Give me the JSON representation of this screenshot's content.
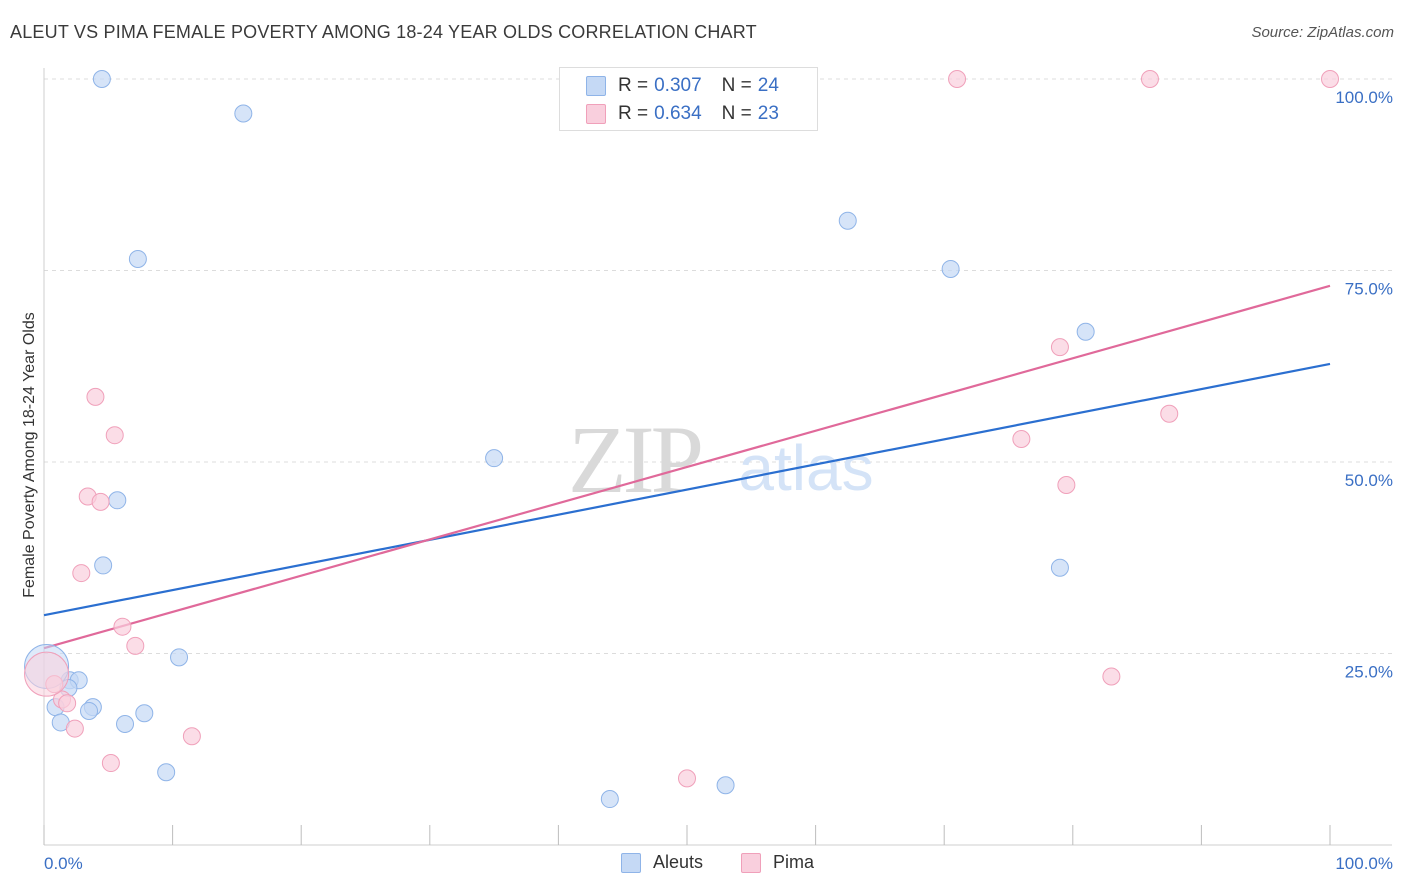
{
  "title": "ALEUT VS PIMA FEMALE POVERTY AMONG 18-24 YEAR OLDS CORRELATION CHART",
  "source": "Source: ZipAtlas.com",
  "watermark": {
    "zip": "ZIP",
    "atlas": "atlas"
  },
  "legend_top": [
    {
      "r_label": "R =",
      "r_value": "0.307",
      "n_label": "N =",
      "n_value": "24"
    },
    {
      "r_label": "R =",
      "r_value": "0.634",
      "n_label": "N =",
      "n_value": "23"
    }
  ],
  "legend_bottom": [
    {
      "label": "Aleuts"
    },
    {
      "label": "Pima"
    }
  ],
  "chart_data": {
    "type": "scatter",
    "title": "ALEUT VS PIMA FEMALE POVERTY AMONG 18-24 YEAR OLDS CORRELATION CHART",
    "xlabel": "",
    "ylabel": "Female Poverty Among 18-24 Year Olds",
    "xlim": [
      0,
      100
    ],
    "ylim": [
      0,
      102
    ],
    "x_ticks": [
      0,
      10,
      20,
      30,
      40,
      50,
      60,
      70,
      80,
      90,
      100
    ],
    "x_tick_labels": [
      {
        "value": 0,
        "label": "0.0%"
      },
      {
        "value": 100,
        "label": "100.0%"
      }
    ],
    "y_ticks": [
      {
        "value": 25,
        "label": "25.0%"
      },
      {
        "value": 50,
        "label": "50.0%"
      },
      {
        "value": 75,
        "label": "75.0%"
      },
      {
        "value": 100,
        "label": "100.0%"
      }
    ],
    "grid": "horizontal dashed",
    "legend_position": "top-center",
    "series": [
      {
        "name": "Aleuts",
        "color": "#8fb4e8",
        "fill": "#c5d9f5",
        "line_color": "#2b6fd0",
        "trend": {
          "x": [
            0,
            100
          ],
          "y": [
            30.0,
            62.8
          ]
        },
        "points": [
          {
            "x": 4.5,
            "y": 100
          },
          {
            "x": 15.5,
            "y": 95.5
          },
          {
            "x": 7.3,
            "y": 76.5
          },
          {
            "x": 35,
            "y": 50.5
          },
          {
            "x": 5.7,
            "y": 45
          },
          {
            "x": 4.6,
            "y": 36.5
          },
          {
            "x": 10.5,
            "y": 24.5
          },
          {
            "x": 2.0,
            "y": 21.5
          },
          {
            "x": 2.7,
            "y": 21.5
          },
          {
            "x": 1.9,
            "y": 20.5
          },
          {
            "x": 0.9,
            "y": 18
          },
          {
            "x": 3.8,
            "y": 18
          },
          {
            "x": 3.5,
            "y": 17.5
          },
          {
            "x": 7.8,
            "y": 17.2
          },
          {
            "x": 1.3,
            "y": 16
          },
          {
            "x": 6.3,
            "y": 15.8
          },
          {
            "x": 9.5,
            "y": 9.5
          },
          {
            "x": 44,
            "y": 6
          },
          {
            "x": 53,
            "y": 7.8
          },
          {
            "x": 62.5,
            "y": 81.5
          },
          {
            "x": 70.5,
            "y": 75.2
          },
          {
            "x": 81,
            "y": 67
          },
          {
            "x": 79,
            "y": 36.2
          },
          {
            "x": 0.2,
            "y": 23.3,
            "large": true
          }
        ]
      },
      {
        "name": "Pima",
        "color": "#f0a0ba",
        "fill": "#f9cfdd",
        "line_color": "#e0699a",
        "trend": {
          "x": [
            0,
            100
          ],
          "y": [
            25.7,
            73.0
          ]
        },
        "points": [
          {
            "x": 71,
            "y": 100
          },
          {
            "x": 86,
            "y": 100
          },
          {
            "x": 100,
            "y": 100
          },
          {
            "x": 4.0,
            "y": 58.5
          },
          {
            "x": 5.5,
            "y": 53.5
          },
          {
            "x": 3.4,
            "y": 45.5
          },
          {
            "x": 4.4,
            "y": 44.8
          },
          {
            "x": 2.9,
            "y": 35.5
          },
          {
            "x": 6.1,
            "y": 28.5
          },
          {
            "x": 7.1,
            "y": 26
          },
          {
            "x": 0.8,
            "y": 21
          },
          {
            "x": 1.4,
            "y": 19
          },
          {
            "x": 1.8,
            "y": 18.5
          },
          {
            "x": 2.4,
            "y": 15.2
          },
          {
            "x": 11.5,
            "y": 14.2
          },
          {
            "x": 5.2,
            "y": 10.7
          },
          {
            "x": 50,
            "y": 8.7
          },
          {
            "x": 79,
            "y": 65
          },
          {
            "x": 76,
            "y": 53
          },
          {
            "x": 79.5,
            "y": 47
          },
          {
            "x": 87.5,
            "y": 56.3
          },
          {
            "x": 83,
            "y": 22
          },
          {
            "x": 0.2,
            "y": 22.3,
            "large": true
          }
        ]
      }
    ]
  }
}
